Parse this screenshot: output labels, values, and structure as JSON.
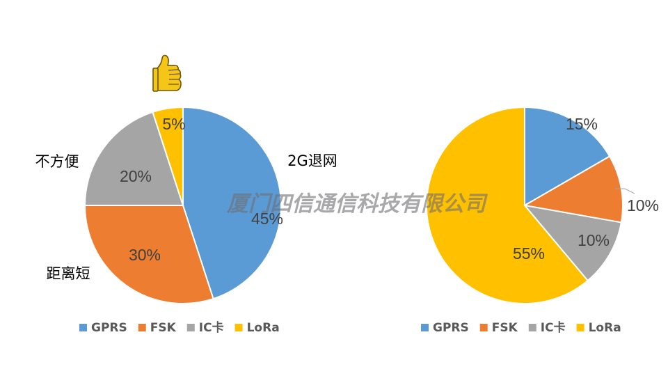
{
  "colors": {
    "GPRS": "#5B9BD5",
    "FSK": "#ED7D31",
    "IC卡": "#A5A5A5",
    "LoRa": "#FFC000",
    "label_text": "#404040"
  },
  "watermark": "厦门四信通信科技有限公司",
  "thumbs_up_icon": "thumbs-up-icon",
  "chart_data": [
    {
      "type": "pie",
      "categories": [
        "GPRS",
        "FSK",
        "IC卡",
        "LoRa"
      ],
      "values": [
        45,
        30,
        20,
        5
      ],
      "data_labels": [
        "45%",
        "30%",
        "20%",
        "5%"
      ],
      "annotations": [
        "2G退网",
        "距离短",
        "不方便"
      ],
      "legend": [
        "GPRS",
        "FSK",
        "IC卡",
        "LoRa"
      ],
      "legend_position": "bottom"
    },
    {
      "type": "pie",
      "categories": [
        "GPRS",
        "FSK",
        "IC卡",
        "LoRa"
      ],
      "values": [
        15,
        10,
        10,
        55
      ],
      "data_labels": [
        "15%",
        "10%",
        "10%",
        "55%"
      ],
      "legend": [
        "GPRS",
        "FSK",
        "IC卡",
        "LoRa"
      ],
      "legend_position": "bottom"
    }
  ]
}
